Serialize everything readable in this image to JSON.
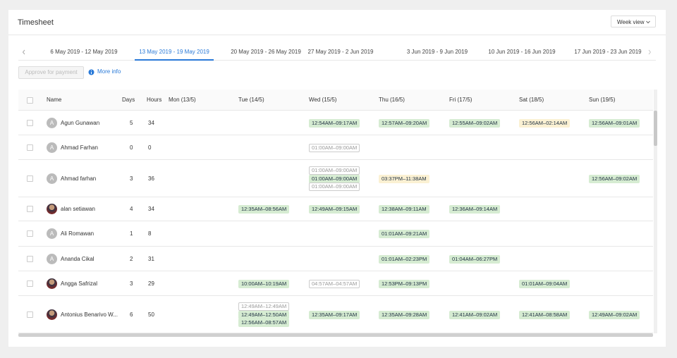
{
  "header": {
    "title": "Timesheet",
    "view_button": "Week view"
  },
  "tabs": [
    "6 May 2019 - 12 May 2019",
    "13 May 2019 - 19 May 2019",
    "20 May 2019 - 26 May 2019",
    "27 May 2019 - 2 Jun 2019",
    "3 Jun 2019 - 9 Jun 2019",
    "10 Jun 2019 - 16 Jun 2019",
    "17 Jun 2019 - 23 Jun 2019"
  ],
  "active_tab": 1,
  "actions": {
    "approve": "Approve for payment",
    "more_info": "More info"
  },
  "table": {
    "columns": [
      "Name",
      "Days",
      "Hours",
      "Mon (13/5)",
      "Tue (14/5)",
      "Wed (15/5)",
      "Thu (16/5)",
      "Fri (17/5)",
      "Sat (18/5)",
      "Sun (19/5)"
    ],
    "rows": [
      {
        "avatar": "A",
        "name": "Agun Gunawan",
        "days": 5,
        "hours": 34,
        "cells": [
          [],
          [],
          [
            {
              "text": "12:54AM–09:17AM",
              "color": "#d6ecd2"
            }
          ],
          [
            {
              "text": "12:57AM–09:20AM",
              "color": "#d6ecd2"
            }
          ],
          [
            {
              "text": "12:55AM–09:02AM",
              "color": "#d6ecd2"
            }
          ],
          [
            {
              "text": "12:56AM–02:14AM",
              "color": "#fbf1d3"
            }
          ],
          [
            {
              "text": "12:56AM–09:01AM",
              "color": "#d6ecd2"
            }
          ]
        ]
      },
      {
        "avatar": "A",
        "name": "Ahmad Farhan",
        "days": 0,
        "hours": 0,
        "cells": [
          [],
          [],
          [
            {
              "text": "01:00AM–09:00AM",
              "color": "#ffffff"
            }
          ],
          [],
          [],
          [],
          []
        ]
      },
      {
        "avatar": "A",
        "name": "Ahmad farhan",
        "days": 3,
        "hours": 36,
        "cells": [
          [],
          [],
          [
            {
              "text": "01:00AM–09:00AM",
              "color": "#ffffff"
            },
            {
              "text": "01:00AM–09:00AM",
              "color": "#d6ecd2"
            },
            {
              "text": "01:00AM–09:00AM",
              "color": "#ffffff"
            }
          ],
          [
            {
              "text": "03:37PM–11:38AM",
              "color": "#fbf1d3"
            }
          ],
          [],
          [],
          [
            {
              "text": "12:56AM–09:02AM",
              "color": "#d6ecd2"
            }
          ]
        ]
      },
      {
        "name": "alan setiawan",
        "days": 4,
        "hours": 34,
        "cells": [
          [],
          [
            {
              "text": "12:35AM–08:56AM",
              "color": "#d6ecd2"
            }
          ],
          [
            {
              "text": "12:49AM–09:15AM",
              "color": "#d6ecd2"
            }
          ],
          [
            {
              "text": "12:38AM–09:11AM",
              "color": "#d6ecd2"
            }
          ],
          [
            {
              "text": "12:36AM–09:14AM",
              "color": "#d6ecd2"
            }
          ],
          [],
          []
        ]
      },
      {
        "avatar": "A",
        "name": "Ali Romawan",
        "days": 1,
        "hours": 8,
        "cells": [
          [],
          [],
          [],
          [
            {
              "text": "01:01AM–09:21AM",
              "color": "#d6ecd2"
            }
          ],
          [],
          [],
          []
        ]
      },
      {
        "avatar": "A",
        "name": "Ananda Cikal",
        "days": 2,
        "hours": 31,
        "cells": [
          [],
          [],
          [],
          [
            {
              "text": "01:01AM–02:23PM",
              "color": "#d6ecd2"
            }
          ],
          [
            {
              "text": "01:04AM–06:27PM",
              "color": "#d6ecd2"
            }
          ],
          [],
          []
        ]
      },
      {
        "name": "Angga Safrizal",
        "days": 3,
        "hours": 29,
        "cells": [
          [],
          [
            {
              "text": "10:00AM–10:19AM",
              "color": "#d6ecd2"
            }
          ],
          [
            {
              "text": "04:57AM–04:57AM",
              "color": "#ffffff"
            }
          ],
          [
            {
              "text": "12:53PM–09:13PM",
              "color": "#d6ecd2"
            }
          ],
          [],
          [
            {
              "text": "01:01AM–09:04AM",
              "color": "#d6ecd2"
            }
          ],
          []
        ]
      },
      {
        "name": "Antonius Benarivo W...",
        "days": 6,
        "hours": 50,
        "cells": [
          [],
          [
            {
              "text": "12:49AM–12:49AM",
              "color": "#ffffff"
            },
            {
              "text": "12:49AM–12:50AM",
              "color": "#d6ecd2"
            },
            {
              "text": "12:56AM–08:57AM",
              "color": "#d6ecd2"
            }
          ],
          [
            {
              "text": "12:35AM–09:17AM",
              "color": "#d6ecd2"
            }
          ],
          [
            {
              "text": "12:35AM–09:28AM",
              "color": "#d6ecd2"
            }
          ],
          [
            {
              "text": "12:41AM–09:02AM",
              "color": "#d6ecd2"
            }
          ],
          [
            {
              "text": "12:41AM–08:58AM",
              "color": "#d6ecd2"
            }
          ],
          [
            {
              "text": "12:49AM–09:02AM",
              "color": "#d6ecd2"
            }
          ]
        ]
      }
    ]
  }
}
